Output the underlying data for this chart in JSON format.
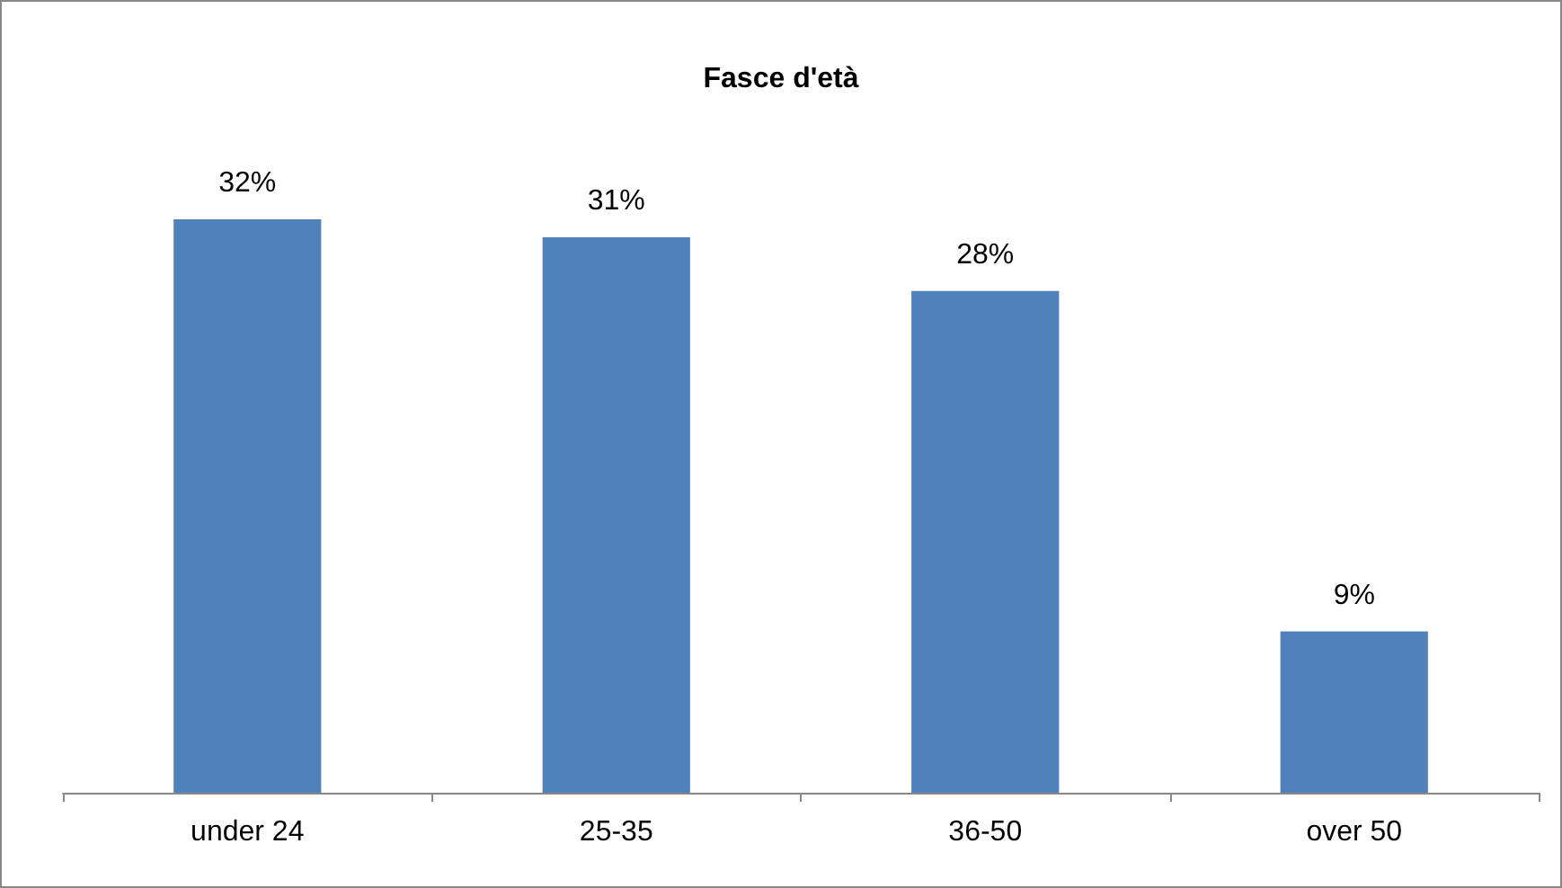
{
  "chart_data": {
    "type": "bar",
    "title": "Fasce d'età",
    "categories": [
      "under 24",
      "25-35",
      "36-50",
      "over 50"
    ],
    "values": [
      32,
      31,
      28,
      9
    ],
    "value_labels": [
      "32%",
      "31%",
      "28%",
      "9%"
    ],
    "color": "#4f81bd"
  }
}
